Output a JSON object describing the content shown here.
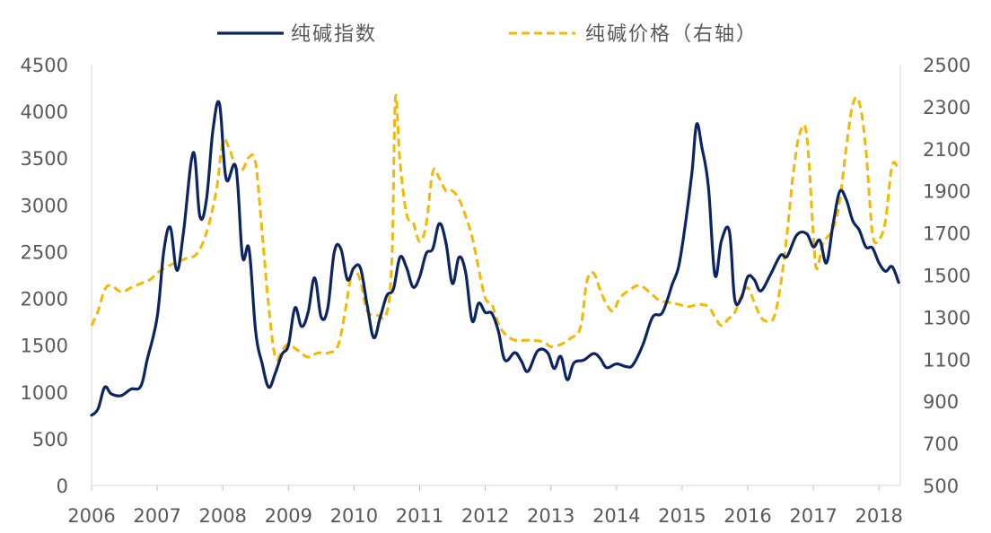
{
  "chart_data": {
    "type": "line",
    "title": "",
    "xlabel": "",
    "ylabel_left": "",
    "ylabel_right": "",
    "x_ticks": [
      "2006",
      "2007",
      "2008",
      "2009",
      "2010",
      "2011",
      "2012",
      "2013",
      "2014",
      "2015",
      "2016",
      "2017",
      "2018"
    ],
    "x_range": [
      2006.0,
      2018.35
    ],
    "left_axis": {
      "range": [
        0,
        4500
      ],
      "ticks": [
        0,
        500,
        1000,
        1500,
        2000,
        2500,
        3000,
        3500,
        4000,
        4500
      ]
    },
    "right_axis": {
      "range": [
        500,
        2500
      ],
      "ticks": [
        500,
        700,
        900,
        1100,
        1300,
        1500,
        1700,
        1900,
        2100,
        2300,
        2500
      ]
    },
    "grid": false,
    "legend_position": "top-center",
    "series": [
      {
        "name": "纯碱指数",
        "axis": "left",
        "color": "#0c2461",
        "style": "solid",
        "points": [
          [
            2006.0,
            750
          ],
          [
            2006.1,
            820
          ],
          [
            2006.2,
            1050
          ],
          [
            2006.3,
            980
          ],
          [
            2006.45,
            960
          ],
          [
            2006.6,
            1030
          ],
          [
            2006.75,
            1060
          ],
          [
            2006.85,
            1350
          ],
          [
            2007.0,
            1800
          ],
          [
            2007.1,
            2500
          ],
          [
            2007.2,
            2760
          ],
          [
            2007.3,
            2300
          ],
          [
            2007.4,
            2700
          ],
          [
            2007.55,
            3560
          ],
          [
            2007.65,
            2880
          ],
          [
            2007.75,
            3050
          ],
          [
            2007.85,
            3800
          ],
          [
            2007.95,
            4080
          ],
          [
            2008.05,
            3280
          ],
          [
            2008.2,
            3400
          ],
          [
            2008.3,
            2450
          ],
          [
            2008.4,
            2530
          ],
          [
            2008.5,
            1650
          ],
          [
            2008.6,
            1300
          ],
          [
            2008.7,
            1050
          ],
          [
            2008.8,
            1200
          ],
          [
            2008.9,
            1400
          ],
          [
            2009.0,
            1500
          ],
          [
            2009.1,
            1900
          ],
          [
            2009.2,
            1700
          ],
          [
            2009.3,
            1850
          ],
          [
            2009.4,
            2220
          ],
          [
            2009.5,
            1800
          ],
          [
            2009.6,
            1900
          ],
          [
            2009.7,
            2500
          ],
          [
            2009.8,
            2530
          ],
          [
            2009.9,
            2200
          ],
          [
            2010.0,
            2330
          ],
          [
            2010.1,
            2320
          ],
          [
            2010.2,
            1930
          ],
          [
            2010.3,
            1580
          ],
          [
            2010.4,
            1800
          ],
          [
            2010.5,
            2030
          ],
          [
            2010.6,
            2100
          ],
          [
            2010.7,
            2440
          ],
          [
            2010.8,
            2330
          ],
          [
            2010.9,
            2120
          ],
          [
            2011.0,
            2230
          ],
          [
            2011.1,
            2480
          ],
          [
            2011.2,
            2530
          ],
          [
            2011.3,
            2800
          ],
          [
            2011.4,
            2600
          ],
          [
            2011.5,
            2160
          ],
          [
            2011.6,
            2440
          ],
          [
            2011.7,
            2280
          ],
          [
            2011.8,
            1760
          ],
          [
            2011.9,
            1950
          ],
          [
            2012.0,
            1850
          ],
          [
            2012.1,
            1840
          ],
          [
            2012.2,
            1650
          ],
          [
            2012.3,
            1340
          ],
          [
            2012.45,
            1420
          ],
          [
            2012.55,
            1330
          ],
          [
            2012.65,
            1220
          ],
          [
            2012.8,
            1440
          ],
          [
            2012.95,
            1420
          ],
          [
            2013.05,
            1250
          ],
          [
            2013.15,
            1380
          ],
          [
            2013.25,
            1130
          ],
          [
            2013.35,
            1310
          ],
          [
            2013.5,
            1340
          ],
          [
            2013.65,
            1410
          ],
          [
            2013.75,
            1360
          ],
          [
            2013.85,
            1260
          ],
          [
            2014.0,
            1300
          ],
          [
            2014.15,
            1270
          ],
          [
            2014.25,
            1290
          ],
          [
            2014.4,
            1500
          ],
          [
            2014.55,
            1800
          ],
          [
            2014.7,
            1850
          ],
          [
            2014.85,
            2150
          ],
          [
            2014.95,
            2350
          ],
          [
            2015.05,
            2800
          ],
          [
            2015.15,
            3350
          ],
          [
            2015.22,
            3860
          ],
          [
            2015.3,
            3620
          ],
          [
            2015.4,
            3200
          ],
          [
            2015.5,
            2250
          ],
          [
            2015.6,
            2620
          ],
          [
            2015.72,
            2720
          ],
          [
            2015.8,
            2000
          ],
          [
            2015.9,
            2000
          ],
          [
            2016.0,
            2230
          ],
          [
            2016.1,
            2200
          ],
          [
            2016.2,
            2080
          ],
          [
            2016.35,
            2260
          ],
          [
            2016.5,
            2460
          ],
          [
            2016.6,
            2450
          ],
          [
            2016.75,
            2680
          ],
          [
            2016.9,
            2690
          ],
          [
            2017.0,
            2550
          ],
          [
            2017.1,
            2620
          ],
          [
            2017.2,
            2380
          ],
          [
            2017.3,
            2790
          ],
          [
            2017.4,
            3140
          ],
          [
            2017.5,
            3060
          ],
          [
            2017.6,
            2830
          ],
          [
            2017.7,
            2730
          ],
          [
            2017.8,
            2550
          ],
          [
            2017.9,
            2540
          ],
          [
            2018.0,
            2380
          ],
          [
            2018.1,
            2290
          ],
          [
            2018.2,
            2340
          ],
          [
            2018.3,
            2170
          ]
        ]
      },
      {
        "name": "纯碱价格（右轴）",
        "axis": "right",
        "color": "#f5b800",
        "style": "dashed",
        "points": [
          [
            2006.0,
            1260
          ],
          [
            2006.1,
            1330
          ],
          [
            2006.2,
            1430
          ],
          [
            2006.3,
            1450
          ],
          [
            2006.45,
            1420
          ],
          [
            2006.6,
            1440
          ],
          [
            2006.75,
            1460
          ],
          [
            2006.9,
            1480
          ],
          [
            2007.0,
            1510
          ],
          [
            2007.15,
            1540
          ],
          [
            2007.3,
            1560
          ],
          [
            2007.45,
            1580
          ],
          [
            2007.6,
            1600
          ],
          [
            2007.75,
            1700
          ],
          [
            2007.9,
            1900
          ],
          [
            2008.0,
            2130
          ],
          [
            2008.1,
            2100
          ],
          [
            2008.2,
            2010
          ],
          [
            2008.3,
            2000
          ],
          [
            2008.4,
            2060
          ],
          [
            2008.5,
            2030
          ],
          [
            2008.6,
            1700
          ],
          [
            2008.7,
            1350
          ],
          [
            2008.8,
            1110
          ],
          [
            2008.9,
            1140
          ],
          [
            2009.0,
            1170
          ],
          [
            2009.15,
            1140
          ],
          [
            2009.3,
            1110
          ],
          [
            2009.45,
            1130
          ],
          [
            2009.6,
            1130
          ],
          [
            2009.75,
            1160
          ],
          [
            2009.85,
            1300
          ],
          [
            2009.95,
            1490
          ],
          [
            2010.0,
            1530
          ],
          [
            2010.1,
            1470
          ],
          [
            2010.2,
            1330
          ],
          [
            2010.35,
            1310
          ],
          [
            2010.5,
            1320
          ],
          [
            2010.58,
            1600
          ],
          [
            2010.63,
            2340
          ],
          [
            2010.7,
            2040
          ],
          [
            2010.8,
            1790
          ],
          [
            2010.9,
            1750
          ],
          [
            2011.0,
            1660
          ],
          [
            2011.1,
            1740
          ],
          [
            2011.2,
            1990
          ],
          [
            2011.3,
            1960
          ],
          [
            2011.4,
            1900
          ],
          [
            2011.5,
            1900
          ],
          [
            2011.6,
            1860
          ],
          [
            2011.7,
            1780
          ],
          [
            2011.8,
            1680
          ],
          [
            2011.9,
            1530
          ],
          [
            2012.0,
            1390
          ],
          [
            2012.1,
            1360
          ],
          [
            2012.2,
            1270
          ],
          [
            2012.3,
            1220
          ],
          [
            2012.45,
            1190
          ],
          [
            2012.6,
            1190
          ],
          [
            2012.75,
            1190
          ],
          [
            2012.9,
            1180
          ],
          [
            2013.0,
            1160
          ],
          [
            2013.15,
            1170
          ],
          [
            2013.3,
            1200
          ],
          [
            2013.45,
            1250
          ],
          [
            2013.55,
            1470
          ],
          [
            2013.65,
            1510
          ],
          [
            2013.75,
            1430
          ],
          [
            2013.85,
            1360
          ],
          [
            2013.95,
            1330
          ],
          [
            2014.05,
            1390
          ],
          [
            2014.2,
            1430
          ],
          [
            2014.35,
            1450
          ],
          [
            2014.5,
            1420
          ],
          [
            2014.65,
            1380
          ],
          [
            2014.8,
            1370
          ],
          [
            2014.95,
            1360
          ],
          [
            2015.1,
            1350
          ],
          [
            2015.25,
            1360
          ],
          [
            2015.4,
            1350
          ],
          [
            2015.5,
            1300
          ],
          [
            2015.6,
            1260
          ],
          [
            2015.7,
            1290
          ],
          [
            2015.8,
            1320
          ],
          [
            2015.9,
            1400
          ],
          [
            2016.0,
            1440
          ],
          [
            2016.1,
            1370
          ],
          [
            2016.2,
            1300
          ],
          [
            2016.3,
            1280
          ],
          [
            2016.4,
            1300
          ],
          [
            2016.5,
            1450
          ],
          [
            2016.6,
            1700
          ],
          [
            2016.7,
            2000
          ],
          [
            2016.8,
            2180
          ],
          [
            2016.9,
            2160
          ],
          [
            2017.0,
            1690
          ],
          [
            2017.05,
            1530
          ],
          [
            2017.15,
            1650
          ],
          [
            2017.3,
            1720
          ],
          [
            2017.4,
            1850
          ],
          [
            2017.5,
            2100
          ],
          [
            2017.6,
            2310
          ],
          [
            2017.7,
            2320
          ],
          [
            2017.8,
            2100
          ],
          [
            2017.9,
            1700
          ],
          [
            2018.0,
            1670
          ],
          [
            2018.1,
            1760
          ],
          [
            2018.2,
            2020
          ],
          [
            2018.3,
            2000
          ]
        ]
      }
    ]
  }
}
